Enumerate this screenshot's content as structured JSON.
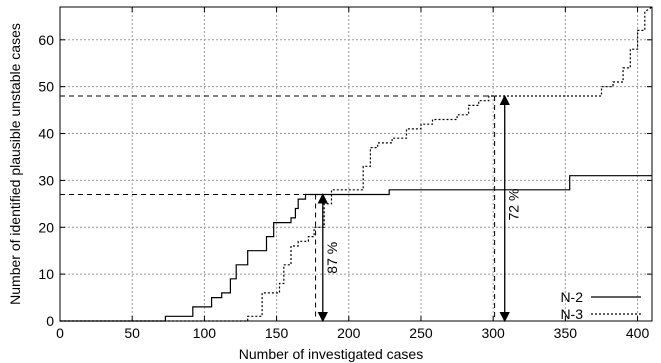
{
  "chart_data": {
    "type": "line",
    "title": "",
    "xlabel": "Number of investigated cases",
    "ylabel": "Number of identified plausible unstable cases",
    "xlim": [
      0,
      410
    ],
    "ylim": [
      0,
      67
    ],
    "xticks": [
      0,
      50,
      100,
      150,
      200,
      250,
      300,
      350,
      400
    ],
    "yticks": [
      0,
      10,
      20,
      30,
      40,
      50,
      60
    ],
    "grid": true,
    "legend_position": "bottom-right",
    "series": [
      {
        "name": "N-2",
        "style": "solid",
        "points": [
          [
            0,
            0
          ],
          [
            73,
            0
          ],
          [
            73,
            1
          ],
          [
            92,
            1
          ],
          [
            92,
            3
          ],
          [
            105,
            3
          ],
          [
            105,
            5
          ],
          [
            112,
            5
          ],
          [
            112,
            6
          ],
          [
            118,
            6
          ],
          [
            118,
            9
          ],
          [
            122,
            9
          ],
          [
            122,
            12
          ],
          [
            130,
            12
          ],
          [
            130,
            15
          ],
          [
            143,
            15
          ],
          [
            143,
            18
          ],
          [
            148,
            18
          ],
          [
            148,
            21
          ],
          [
            160,
            21
          ],
          [
            160,
            22
          ],
          [
            163,
            22
          ],
          [
            163,
            24
          ],
          [
            165,
            24
          ],
          [
            165,
            26
          ],
          [
            170,
            26
          ],
          [
            170,
            27
          ],
          [
            228,
            27
          ],
          [
            228,
            28
          ],
          [
            353,
            28
          ],
          [
            353,
            31
          ],
          [
            410,
            31
          ]
        ]
      },
      {
        "name": "N-3",
        "style": "dotted",
        "points": [
          [
            0,
            0
          ],
          [
            130,
            0
          ],
          [
            130,
            1
          ],
          [
            140,
            1
          ],
          [
            140,
            6
          ],
          [
            152,
            6
          ],
          [
            152,
            8
          ],
          [
            155,
            8
          ],
          [
            155,
            12
          ],
          [
            160,
            12
          ],
          [
            160,
            16
          ],
          [
            165,
            16
          ],
          [
            165,
            17
          ],
          [
            172,
            17
          ],
          [
            172,
            18
          ],
          [
            176,
            18
          ],
          [
            176,
            20
          ],
          [
            183,
            20
          ],
          [
            183,
            25
          ],
          [
            188,
            25
          ],
          [
            188,
            28
          ],
          [
            210,
            28
          ],
          [
            210,
            33
          ],
          [
            215,
            33
          ],
          [
            215,
            37
          ],
          [
            220,
            37
          ],
          [
            220,
            38
          ],
          [
            230,
            38
          ],
          [
            230,
            39
          ],
          [
            240,
            39
          ],
          [
            240,
            41
          ],
          [
            250,
            41
          ],
          [
            250,
            42
          ],
          [
            258,
            42
          ],
          [
            258,
            43
          ],
          [
            275,
            43
          ],
          [
            275,
            44
          ],
          [
            283,
            44
          ],
          [
            283,
            46
          ],
          [
            290,
            46
          ],
          [
            290,
            47
          ],
          [
            297,
            47
          ],
          [
            297,
            48
          ],
          [
            375,
            48
          ],
          [
            375,
            50
          ],
          [
            383,
            50
          ],
          [
            383,
            51
          ],
          [
            390,
            51
          ],
          [
            390,
            54
          ],
          [
            395,
            54
          ],
          [
            395,
            58
          ],
          [
            400,
            58
          ],
          [
            400,
            62
          ],
          [
            405,
            62
          ],
          [
            405,
            66
          ],
          [
            410,
            67
          ]
        ]
      }
    ],
    "annotations": [
      {
        "text": "87 %",
        "x": 182,
        "y_from": 0,
        "y_to": 27
      },
      {
        "text": "72 %",
        "x": 308,
        "y_from": 0,
        "y_to": 48
      }
    ],
    "reference_lines": {
      "h_N2_y": 27,
      "v_N2_x": 177,
      "h_N3_y": 48,
      "v_N3_x": 301
    }
  }
}
